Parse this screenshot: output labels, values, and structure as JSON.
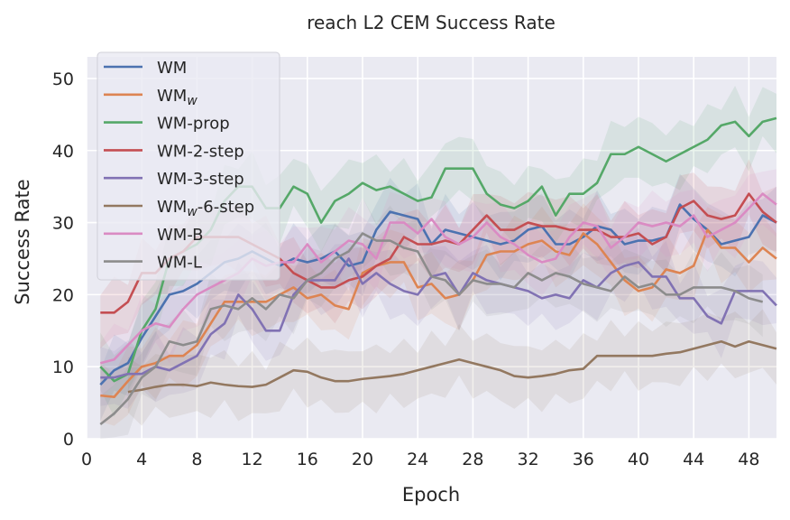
{
  "chart_data": {
    "type": "line",
    "title": "reach L2 CEM Success Rate",
    "xlabel": "Epoch",
    "ylabel": "Success Rate",
    "xlim": [
      0,
      50
    ],
    "ylim": [
      0,
      53
    ],
    "xticks": [
      0,
      4,
      8,
      12,
      16,
      20,
      24,
      28,
      32,
      36,
      40,
      44,
      48
    ],
    "yticks": [
      0,
      10,
      20,
      30,
      40,
      50
    ],
    "grid": true,
    "legend_placement": "top-left",
    "x": [
      1,
      2,
      3,
      4,
      5,
      6,
      7,
      8,
      9,
      10,
      11,
      12,
      13,
      14,
      15,
      16,
      17,
      18,
      19,
      20,
      21,
      22,
      23,
      24,
      25,
      26,
      27,
      28,
      29,
      30,
      31,
      32,
      33,
      34,
      35,
      36,
      37,
      38,
      39,
      40,
      41,
      42,
      43,
      44,
      45,
      46,
      47,
      48,
      49,
      50
    ],
    "series": [
      {
        "name": "WM",
        "legend_base": "WM",
        "legend_sub": "",
        "legend_suffix": "",
        "color": "#4c72b0",
        "values": [
          7.5,
          9.5,
          10.5,
          14,
          17,
          20,
          20.5,
          21.5,
          23,
          24.5,
          25,
          26,
          25,
          24,
          25,
          24.5,
          25,
          26,
          24,
          24.5,
          29,
          31.5,
          31,
          30.5,
          27,
          29,
          28.5,
          28,
          27.5,
          27,
          27.5,
          29,
          29.5,
          27,
          27,
          28,
          29.5,
          29,
          27,
          27.5,
          27.5,
          28,
          32.5,
          30.5,
          29,
          27,
          27.5,
          28,
          31,
          30
        ]
      },
      {
        "name": "WMw",
        "legend_base": "WM",
        "legend_sub": "w",
        "legend_suffix": "",
        "color": "#dd8452",
        "values": [
          6,
          5.8,
          8,
          10,
          10.5,
          11.5,
          11.5,
          13,
          16,
          19,
          19,
          19,
          19,
          20,
          21,
          19.5,
          20,
          18.5,
          18,
          23,
          24,
          24.5,
          24.5,
          21,
          21.5,
          19.5,
          20,
          22,
          25.5,
          26,
          26,
          27,
          27.5,
          26,
          25.5,
          28.5,
          27,
          24.5,
          22,
          20.5,
          21,
          23.5,
          23,
          24,
          29,
          26.5,
          26.5,
          24.5,
          26.5,
          25
        ]
      },
      {
        "name": "WM-prop",
        "legend_base": "WM-prop",
        "legend_sub": "",
        "legend_suffix": "",
        "color": "#55a868",
        "values": [
          10,
          8,
          9,
          15,
          18,
          25,
          26,
          27,
          29,
          33,
          35,
          35,
          32,
          32,
          35,
          34,
          30,
          33,
          34,
          35.5,
          34.5,
          35,
          34,
          33,
          33.5,
          37.5,
          37.5,
          37.5,
          34,
          32.5,
          32,
          33,
          35,
          31,
          34,
          34,
          35.5,
          39.5,
          39.5,
          40.5,
          39.5,
          38.5,
          39.5,
          40.5,
          41.5,
          43.5,
          44,
          42,
          44,
          44.5
        ]
      },
      {
        "name": "WM-2-step",
        "legend_base": "WM-2-step",
        "legend_sub": "",
        "legend_suffix": "",
        "color": "#c44e52",
        "values": [
          17.5,
          17.5,
          19,
          23,
          23,
          25,
          26,
          28,
          28,
          28,
          28,
          27,
          26,
          25,
          23,
          22,
          21,
          21,
          22,
          22.5,
          24,
          25,
          28,
          27,
          27,
          27.5,
          27,
          29,
          31,
          29,
          29,
          30,
          29.5,
          29.5,
          29,
          29,
          29,
          28,
          28,
          28.5,
          27,
          28,
          32,
          33,
          31,
          30.5,
          31,
          34,
          31.5,
          30
        ]
      },
      {
        "name": "WM-3-step",
        "legend_base": "WM-3-step",
        "legend_sub": "",
        "legend_suffix": "",
        "color": "#8172b3",
        "values": [
          8.5,
          8.5,
          9,
          9,
          10,
          9.5,
          10.5,
          11.5,
          14.5,
          16,
          20,
          18,
          15,
          15,
          20,
          22,
          22,
          22,
          25,
          21.5,
          23,
          21.5,
          20.5,
          20,
          22.5,
          23,
          20,
          23,
          22,
          21.5,
          21,
          20.5,
          19.5,
          20,
          19.5,
          22,
          21,
          23,
          24,
          24.5,
          22.5,
          22.5,
          19.5,
          19.5,
          17,
          16,
          20.5,
          20.5,
          20.5,
          18.5
        ]
      },
      {
        "name": "WMw-6-step",
        "legend_base": "WM",
        "legend_sub": "w",
        "legend_suffix": "-6-step",
        "color": "#937860",
        "values": [
          null,
          null,
          6.5,
          6.8,
          7.2,
          7.5,
          7.5,
          7.3,
          7.8,
          7.5,
          7.3,
          7.2,
          7.5,
          8.5,
          9.5,
          9.3,
          8.5,
          8,
          8,
          8.3,
          8.5,
          8.7,
          9,
          9.5,
          10,
          10.5,
          11,
          10.5,
          10,
          9.5,
          8.7,
          8.5,
          8.7,
          9,
          9.5,
          9.7,
          11.5,
          11.5,
          11.5,
          11.5,
          11.5,
          11.8,
          12,
          12.5,
          13,
          13.5,
          12.8,
          13.5,
          13,
          12.5
        ]
      },
      {
        "name": "WM-B",
        "legend_base": "WM-B",
        "legend_sub": "",
        "legend_suffix": "",
        "color": "#da8bc3",
        "values": [
          10.5,
          11,
          13,
          15,
          16,
          15.5,
          18,
          20,
          21,
          22,
          23,
          25,
          24,
          24.5,
          24.5,
          27,
          24.5,
          26,
          27.5,
          27,
          25,
          30,
          30,
          28.5,
          30.5,
          28,
          27,
          28,
          30,
          28,
          27,
          25.5,
          24.5,
          25,
          28,
          30,
          29.5,
          26.5,
          28,
          30,
          29.5,
          30,
          29.5,
          31,
          28,
          29,
          30,
          32,
          34,
          32.5
        ]
      },
      {
        "name": "WM-L",
        "legend_base": "WM-L",
        "legend_sub": "",
        "legend_suffix": "",
        "color": "#8c8c8c",
        "values": [
          2,
          3.5,
          5.5,
          8.5,
          10,
          13.5,
          13,
          13.5,
          18,
          18.5,
          18,
          19.5,
          18,
          20,
          19.5,
          22,
          23,
          25,
          26,
          28.5,
          27.5,
          27.5,
          26.5,
          26,
          22.5,
          22,
          20,
          22,
          21.5,
          21.5,
          21,
          23,
          22,
          23,
          22.5,
          21.5,
          21,
          20.5,
          22.5,
          21,
          21.5,
          20,
          20,
          21,
          21,
          21,
          20.5,
          19.5,
          19,
          null
        ]
      }
    ]
  }
}
